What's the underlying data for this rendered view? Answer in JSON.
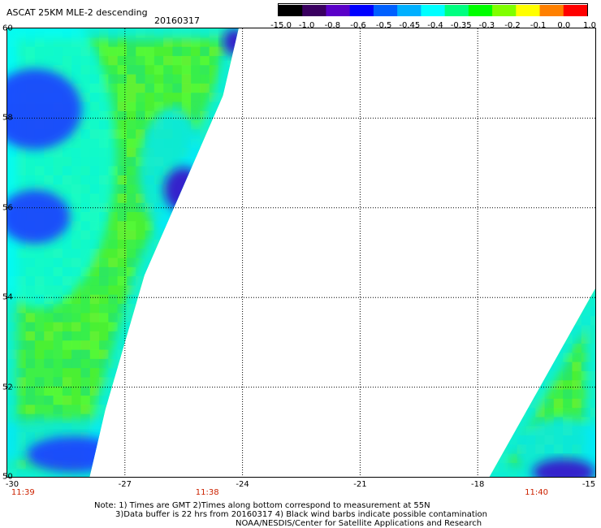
{
  "header": {
    "title": "ASCAT 25KM MLE-2 descending",
    "date": "20160317"
  },
  "colorbar": {
    "labels": [
      "-15.0",
      "-1.0",
      "-0.8",
      "-0.6",
      "-0.5",
      "-0.45",
      "-0.4",
      "-0.35",
      "-0.3",
      "-0.2",
      "-0.1",
      "0.0",
      "1.0"
    ],
    "colors": [
      "#000000",
      "#3a0060",
      "#5a00c8",
      "#0000ff",
      "#0060ff",
      "#00b0ff",
      "#00ffff",
      "#00ff80",
      "#00ff00",
      "#80ff00",
      "#ffff00",
      "#ff8000",
      "#ff0000"
    ]
  },
  "axes": {
    "y_ticks": [
      "60",
      "58",
      "56",
      "54",
      "52",
      "50"
    ],
    "x_ticks": [
      "-30",
      "-27",
      "-24",
      "-21",
      "-18",
      "-15"
    ],
    "times": [
      "11:39",
      "11:38",
      "11:40"
    ],
    "grid": true
  },
  "notes": {
    "line1": "Note: 1) Times are GMT 2)Times along bottom correspond to measurement at 55N",
    "line2": "3)Data buffer is 22 hrs from 20160317 4) Black wind barbs indicate possible contamination",
    "line3": "NOAA/NESDIS/Center for Satellite Applications and Research"
  },
  "map": {
    "lon_range": [
      -30,
      -15
    ],
    "lat_range": [
      50,
      60
    ],
    "swaths": [
      {
        "name": "west swath",
        "polygon": [
          [
            -30,
            60
          ],
          [
            -24.1,
            60
          ],
          [
            -24.5,
            58.5
          ],
          [
            -25.5,
            56.5
          ],
          [
            -26.5,
            54.5
          ],
          [
            -27.5,
            51.5
          ],
          [
            -27.9,
            50
          ],
          [
            -30,
            50
          ]
        ]
      },
      {
        "name": "east swath",
        "polygon": [
          [
            -15,
            54.2
          ],
          [
            -15,
            50
          ],
          [
            -17.7,
            50
          ]
        ]
      }
    ],
    "features": [
      {
        "type": "blue-patch",
        "center": [
          -29.3,
          58.2
        ],
        "rx": 1.2,
        "ry": 0.9
      },
      {
        "type": "blue-patch",
        "center": [
          -29.3,
          55.8
        ],
        "rx": 0.9,
        "ry": 0.6
      },
      {
        "type": "purple-patch",
        "center": [
          -25.5,
          56.4
        ],
        "rx": 0.5,
        "ry": 0.5
      },
      {
        "type": "purple-patch",
        "center": [
          -24.2,
          59.7
        ],
        "rx": 0.3,
        "ry": 0.3
      },
      {
        "type": "blue-patch",
        "center": [
          -28.3,
          50.5
        ],
        "rx": 1.2,
        "ry": 0.4
      },
      {
        "type": "purple-patch",
        "center": [
          -15.8,
          50.1
        ],
        "rx": 0.8,
        "ry": 0.3
      }
    ]
  }
}
